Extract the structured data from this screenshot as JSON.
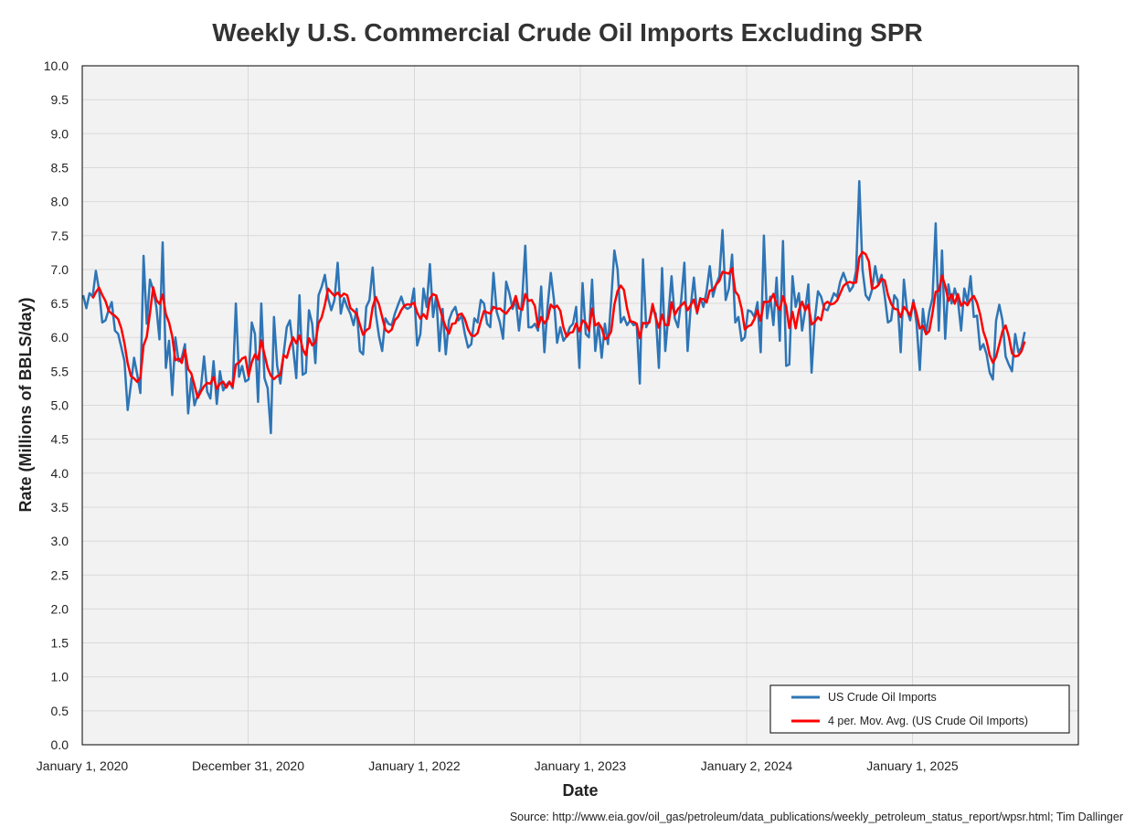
{
  "chart_data": {
    "type": "line",
    "title": "Weekly U.S. Commercial Crude Oil Imports Excluding SPR",
    "xlabel": "Date",
    "ylabel": "Rate (Millions of BBLS/day)",
    "source": "Source: http://www.eia.gov/oil_gas/petroleum/data_publications/weekly_petroleum_status_report/wpsr.html; Tim Dallinger",
    "ylim": [
      0,
      10
    ],
    "y_ticks": [
      "0.0",
      "0.5",
      "1.0",
      "1.5",
      "2.0",
      "2.5",
      "3.0",
      "3.5",
      "4.0",
      "4.5",
      "5.0",
      "5.5",
      "6.0",
      "6.5",
      "7.0",
      "7.5",
      "8.0",
      "8.5",
      "9.0",
      "9.5",
      "10.0"
    ],
    "x_start_date": "2020-01-01",
    "x_end_date": "2026-01-01",
    "x_ticks": [
      {
        "date": "2020-01-01",
        "label": "January 1, 2020"
      },
      {
        "date": "2020-12-31",
        "label": "December 31, 2020"
      },
      {
        "date": "2022-01-01",
        "label": "January 1, 2022"
      },
      {
        "date": "2023-01-01",
        "label": "January 1, 2023"
      },
      {
        "date": "2024-01-02",
        "label": "January 2, 2024"
      },
      {
        "date": "2025-01-01",
        "label": "January 1, 2025"
      }
    ],
    "grid": true,
    "legend_position": "bottom-right",
    "series": [
      {
        "name": "US Crude Oil Imports",
        "color": "#2e75b6",
        "start_date": "2020-01-03",
        "interval_days": 7,
        "values": [
          6.62,
          6.43,
          6.65,
          6.6,
          6.98,
          6.7,
          6.22,
          6.25,
          6.4,
          6.52,
          6.1,
          6.05,
          5.85,
          5.65,
          4.93,
          5.3,
          5.7,
          5.45,
          5.18,
          7.2,
          6.2,
          6.85,
          6.7,
          6.45,
          5.97,
          7.4,
          5.55,
          5.95,
          5.15,
          6.0,
          5.65,
          5.7,
          5.9,
          4.88,
          5.4,
          5.0,
          5.15,
          5.25,
          5.72,
          5.2,
          5.1,
          5.65,
          5.02,
          5.5,
          5.22,
          5.3,
          5.35,
          5.25,
          6.5,
          5.42,
          5.58,
          5.35,
          5.38,
          6.22,
          6.05,
          5.05,
          6.5,
          5.4,
          5.25,
          4.59,
          6.3,
          5.58,
          5.32,
          5.75,
          6.15,
          6.25,
          5.85,
          5.4,
          6.62,
          5.45,
          5.48,
          6.4,
          6.2,
          5.62,
          6.62,
          6.75,
          6.92,
          6.58,
          6.4,
          6.55,
          7.1,
          6.35,
          6.58,
          6.45,
          6.35,
          6.18,
          6.42,
          5.8,
          5.75,
          6.45,
          6.55,
          7.03,
          6.35,
          6.02,
          5.8,
          6.28,
          6.2,
          6.18,
          6.35,
          6.48,
          6.6,
          6.45,
          6.42,
          6.45,
          6.72,
          5.88,
          6.05,
          6.72,
          6.45,
          7.08,
          6.3,
          6.62,
          5.8,
          6.42,
          5.75,
          6.25,
          6.38,
          6.45,
          6.25,
          6.32,
          6.05,
          5.85,
          5.9,
          6.28,
          6.22,
          6.55,
          6.5,
          6.2,
          6.15,
          6.95,
          6.38,
          6.22,
          5.98,
          6.82,
          6.65,
          6.42,
          6.55,
          6.1,
          6.55,
          7.35,
          6.15,
          6.15,
          6.2,
          6.1,
          6.75,
          5.78,
          6.45,
          6.95,
          6.55,
          5.92,
          6.15,
          5.95,
          6.02,
          6.15,
          6.2,
          6.45,
          5.55,
          6.8,
          6.05,
          6.0,
          6.85,
          5.8,
          6.2,
          5.7,
          6.2,
          5.9,
          6.55,
          7.28,
          7.0,
          6.22,
          6.3,
          6.18,
          6.25,
          6.18,
          6.2,
          5.32,
          7.15,
          6.15,
          6.25,
          6.42,
          6.35,
          5.55,
          7.02,
          5.8,
          6.35,
          6.9,
          6.28,
          6.15,
          6.55,
          7.1,
          5.8,
          6.45,
          6.88,
          6.35,
          6.58,
          6.45,
          6.68,
          7.05,
          6.6,
          6.78,
          6.9,
          7.58,
          6.55,
          6.72,
          7.22,
          6.22,
          6.3,
          5.95,
          6.0,
          6.4,
          6.38,
          6.3,
          6.52,
          5.78,
          7.5,
          6.28,
          6.6,
          6.18,
          6.88,
          5.95,
          7.42,
          5.58,
          5.6,
          6.9,
          6.45,
          6.65,
          6.1,
          6.4,
          6.78,
          5.48,
          6.25,
          6.68,
          6.6,
          6.42,
          6.4,
          6.52,
          6.65,
          6.6,
          6.82,
          6.95,
          6.82,
          6.68,
          6.75,
          6.98,
          8.3,
          7.0,
          6.62,
          6.55,
          6.7,
          7.05,
          6.78,
          6.92,
          6.6,
          6.22,
          6.25,
          6.62,
          6.55,
          5.78,
          6.85,
          6.4,
          6.25,
          6.55,
          6.2,
          5.52,
          6.42,
          6.05,
          6.38,
          6.58,
          7.68,
          6.1,
          7.28,
          5.98,
          6.78,
          6.5,
          6.72,
          6.55,
          6.1,
          6.72,
          6.52,
          6.9,
          6.3,
          6.32,
          5.82,
          5.9,
          5.75,
          5.48,
          5.38,
          6.25,
          6.48,
          6.25,
          5.72,
          5.6,
          5.5,
          6.05,
          5.78,
          5.85,
          6.08
        ]
      },
      {
        "name": "4 per. Mov. Avg. (US Crude Oil Imports)",
        "color": "#ff0000",
        "derived": "moving_average",
        "period": 4
      }
    ]
  }
}
